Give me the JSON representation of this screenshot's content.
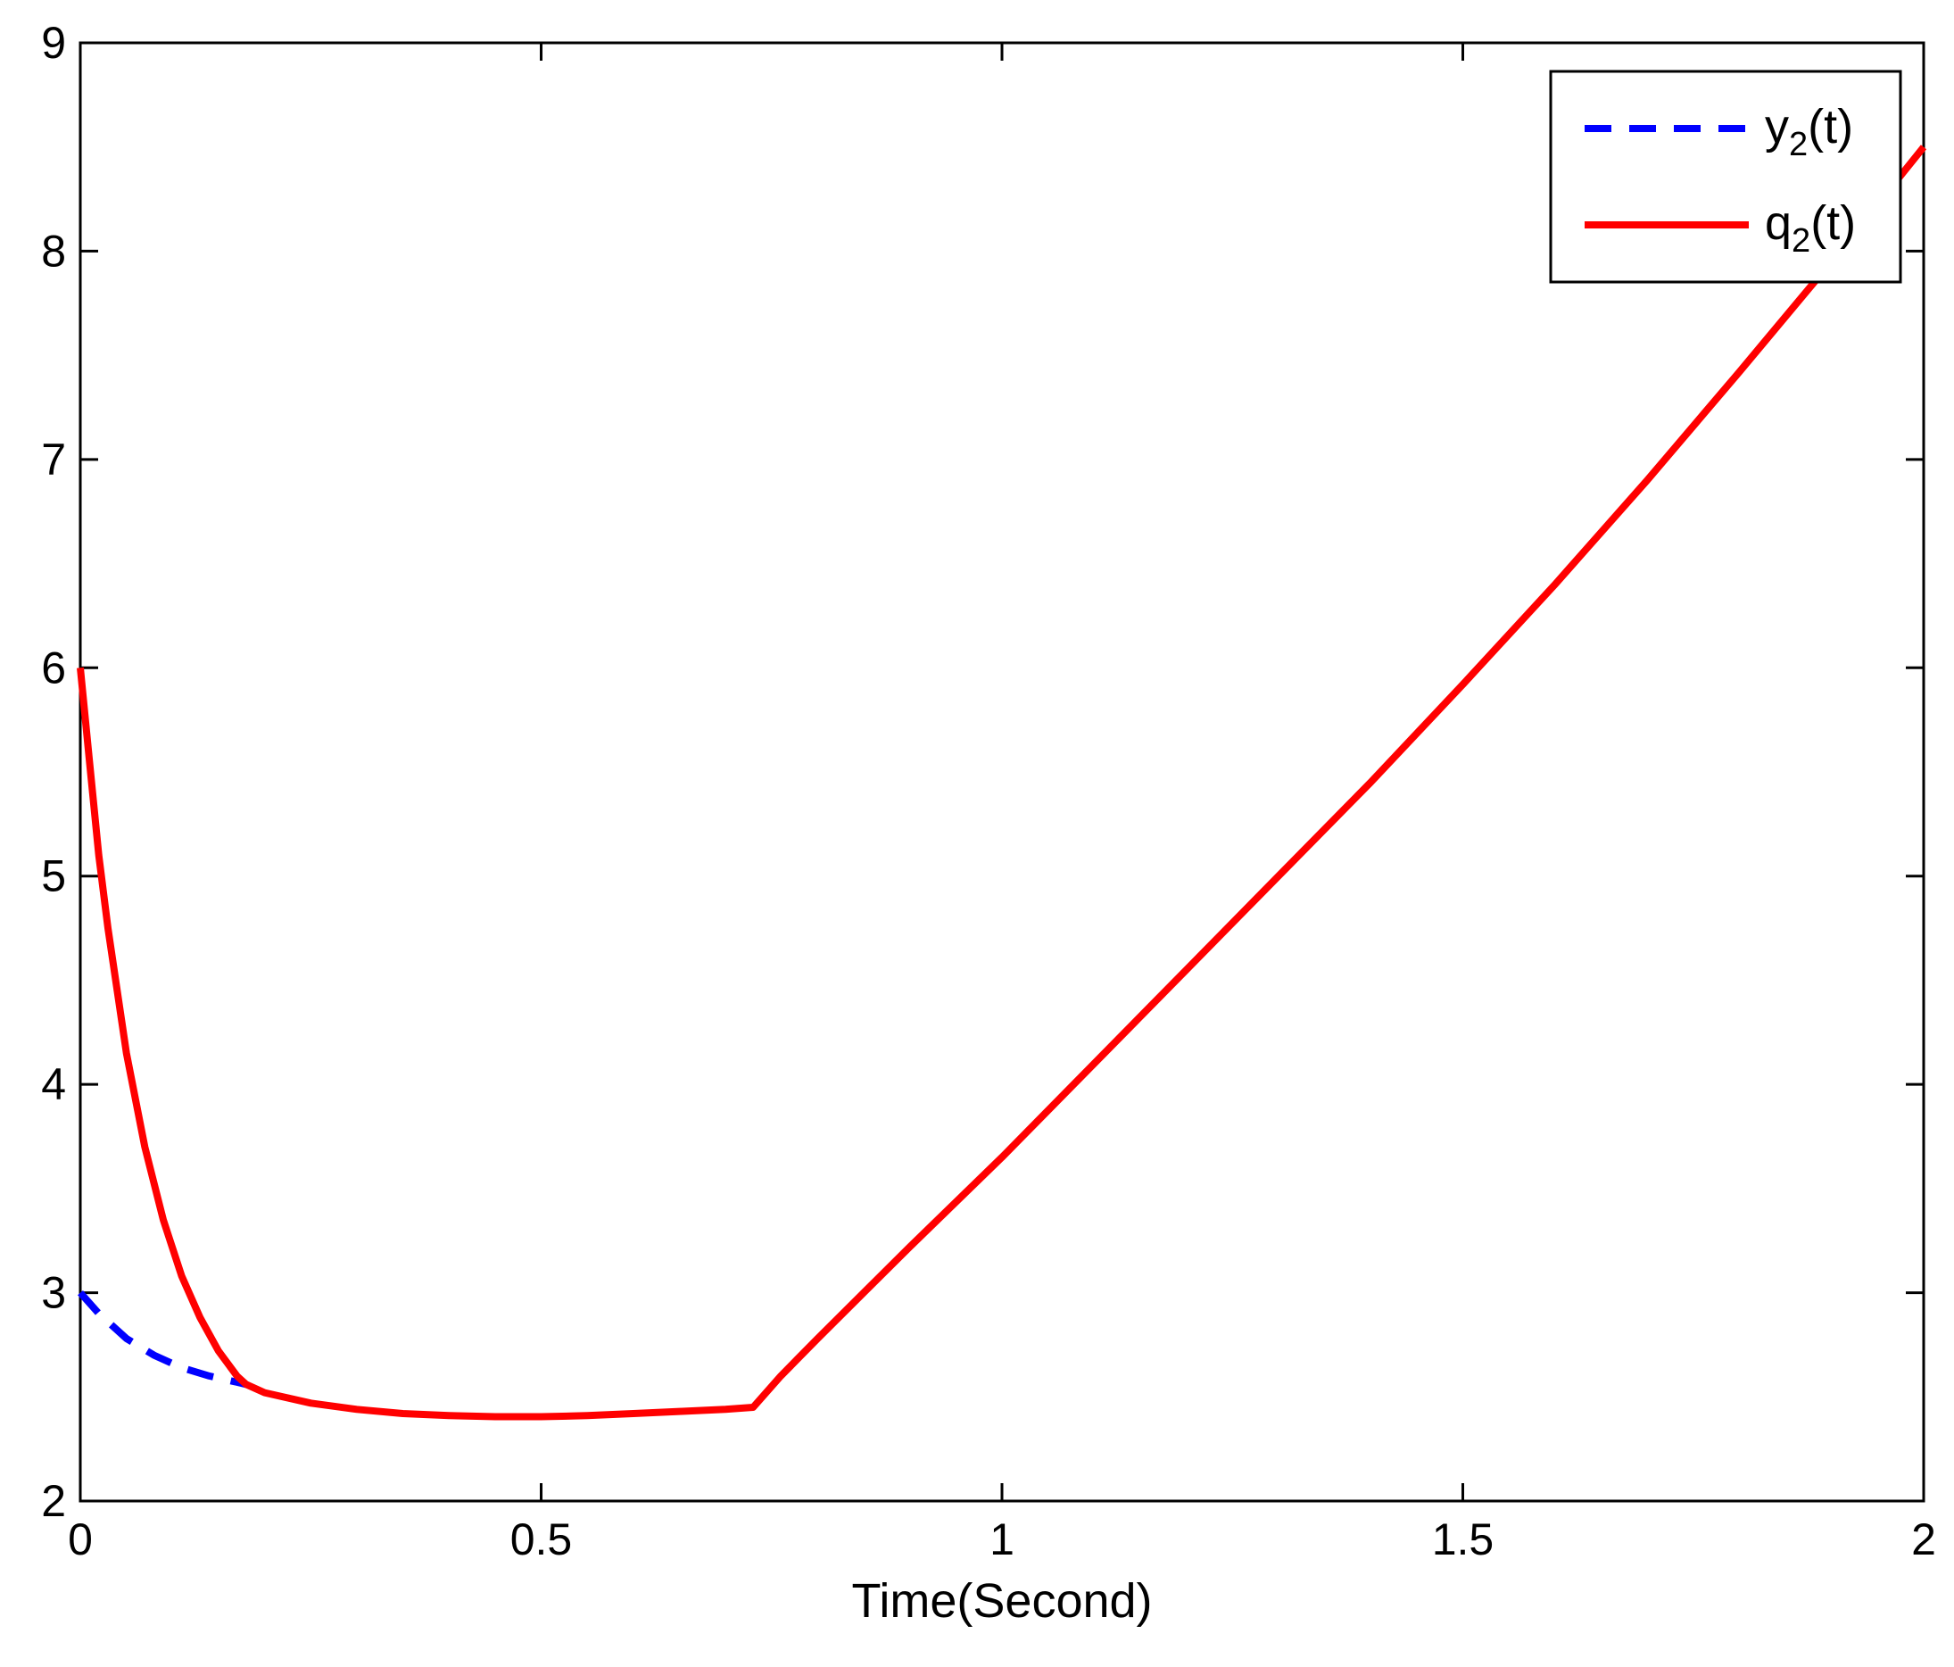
{
  "chart_data": {
    "type": "line",
    "title": "",
    "xlabel": "Time(Second)",
    "ylabel": "",
    "xlim": [
      0,
      2
    ],
    "ylim": [
      2,
      9
    ],
    "xticks": [
      0,
      0.5,
      1,
      1.5,
      2
    ],
    "xtick_labels": [
      "0",
      "0.5",
      "1",
      "1.5",
      "2"
    ],
    "yticks": [
      2,
      3,
      4,
      5,
      6,
      7,
      8,
      9
    ],
    "ytick_labels": [
      "2",
      "3",
      "4",
      "5",
      "6",
      "7",
      "8",
      "9"
    ],
    "grid": false,
    "legend_position": "top-right",
    "series": [
      {
        "name_base": "y",
        "name_sub": "2",
        "name_suffix": "(t)",
        "color": "#0000ff",
        "style": "dashed",
        "x": [
          0,
          0.02,
          0.05,
          0.08,
          0.11,
          0.14,
          0.17,
          0.18
        ],
        "y": [
          3.0,
          2.9,
          2.78,
          2.7,
          2.64,
          2.6,
          2.57,
          2.56
        ]
      },
      {
        "name_base": "q",
        "name_sub": "2",
        "name_suffix": "(t)",
        "color": "#ff0000",
        "style": "solid",
        "x": [
          0,
          0.01,
          0.02,
          0.03,
          0.05,
          0.07,
          0.09,
          0.11,
          0.13,
          0.15,
          0.17,
          0.18,
          0.2,
          0.25,
          0.3,
          0.35,
          0.4,
          0.45,
          0.5,
          0.55,
          0.6,
          0.65,
          0.7,
          0.73,
          0.76,
          0.8,
          0.85,
          0.9,
          1.0,
          1.1,
          1.2,
          1.3,
          1.4,
          1.5,
          1.6,
          1.7,
          1.8,
          1.9,
          2.0
        ],
        "y": [
          6.0,
          5.55,
          5.1,
          4.75,
          4.15,
          3.7,
          3.35,
          3.08,
          2.88,
          2.72,
          2.6,
          2.56,
          2.52,
          2.47,
          2.44,
          2.42,
          2.41,
          2.405,
          2.405,
          2.41,
          2.42,
          2.43,
          2.44,
          2.45,
          2.6,
          2.78,
          3.0,
          3.22,
          3.65,
          4.1,
          4.55,
          5.0,
          5.45,
          5.92,
          6.4,
          6.9,
          7.42,
          7.95,
          8.5
        ]
      }
    ]
  }
}
